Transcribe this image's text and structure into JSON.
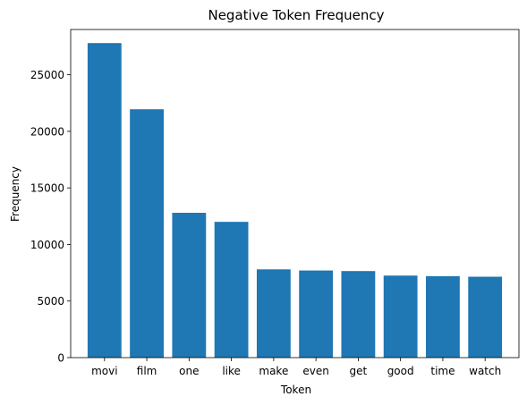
{
  "chart_data": {
    "type": "bar",
    "title": "Negative Token Frequency",
    "xlabel": "Token",
    "ylabel": "Frequency",
    "categories": [
      "movi",
      "film",
      "one",
      "like",
      "make",
      "even",
      "get",
      "good",
      "time",
      "watch"
    ],
    "values": [
      27800,
      21950,
      12800,
      12000,
      7800,
      7700,
      7650,
      7250,
      7200,
      7150
    ],
    "ylim": [
      0,
      29000
    ],
    "yticks": [
      0,
      5000,
      10000,
      15000,
      20000,
      25000
    ],
    "bar_color": "#1f77b4",
    "grid": false,
    "legend": "none"
  }
}
